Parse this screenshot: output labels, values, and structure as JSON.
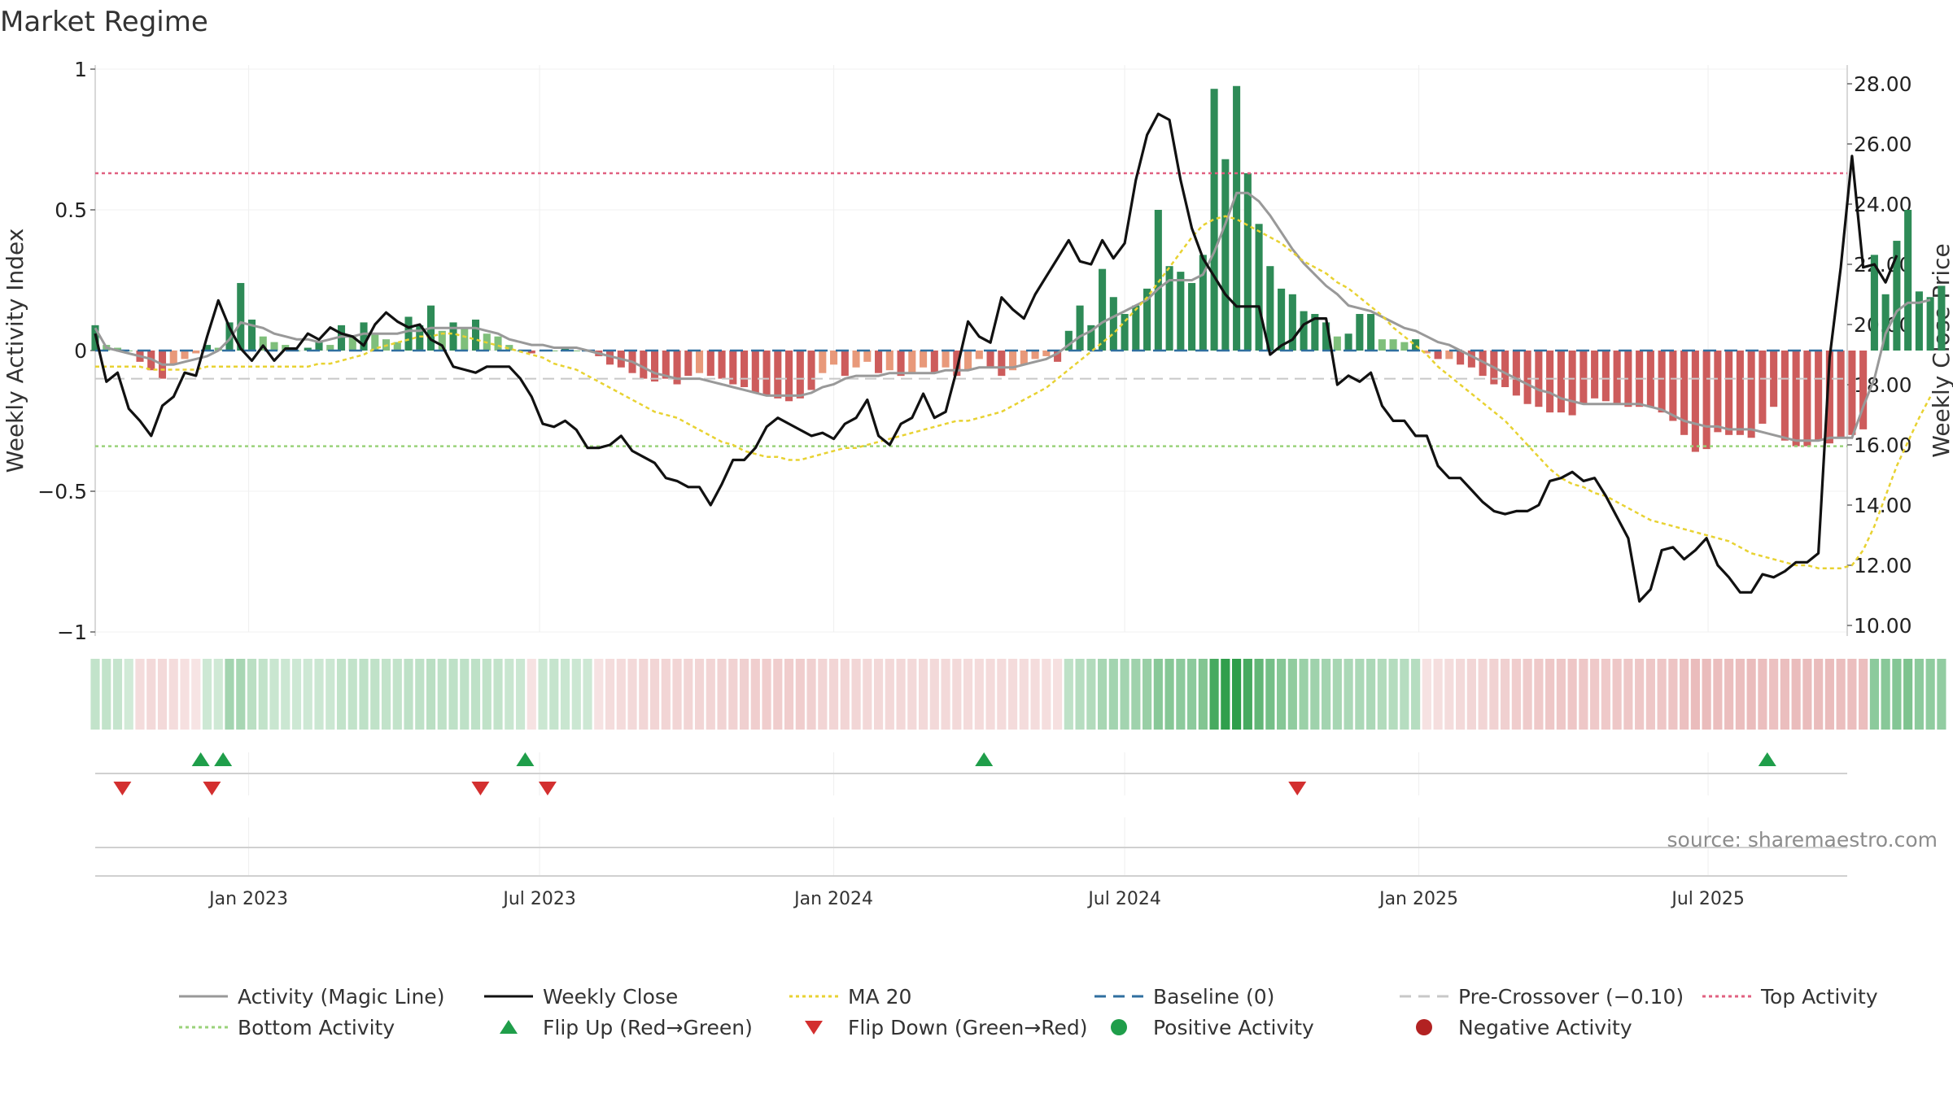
{
  "title": "Market Regime",
  "source": "source: sharemaestro.com",
  "left_axis": {
    "label": "Weekly Activity Index",
    "ticks": [
      1,
      0.5,
      0,
      -0.5,
      -1
    ],
    "tick_labels": [
      "1",
      "0.5",
      "0",
      "−0.5",
      "−1"
    ],
    "range": [
      -1,
      1
    ]
  },
  "right_axis": {
    "label": "Weekly Close Price",
    "ticks": [
      28,
      26,
      24,
      22,
      20,
      18,
      16,
      14,
      12,
      10
    ],
    "tick_labels": [
      "28.00",
      "26.00",
      "24.00",
      "22.00",
      "20.00",
      "18.00",
      "16.00",
      "14.00",
      "12.00",
      "10.00"
    ],
    "range": [
      9.9,
      28.4
    ]
  },
  "x_axis": {
    "ticks": [
      "2022-12-31",
      "2023-07-01",
      "2024-01-01",
      "2024-07-01",
      "2025-01-01",
      "2025-07-01"
    ],
    "tick_labels": [
      "Jan 2023",
      "Jul 2023",
      "Jan 2024",
      "Jul 2024",
      "Jan 2025",
      "Jul 2025"
    ],
    "range": [
      "2022-09-26",
      "2025-09-26"
    ]
  },
  "reference_lines": {
    "top_activity": 0.63,
    "baseline": 0,
    "pre_crossover": -0.1,
    "bottom_activity": -0.34
  },
  "legend": [
    {
      "label": "Activity (Magic Line)",
      "style": "line",
      "color": "#999999"
    },
    {
      "label": "Weekly Close",
      "style": "line",
      "color": "#111111"
    },
    {
      "label": "MA 20",
      "style": "dotted",
      "color": "#e8d232"
    },
    {
      "label": "Baseline (0)",
      "style": "dashed",
      "color": "#2f6f9f"
    },
    {
      "label": "Pre-Crossover (−0.10)",
      "style": "dashed",
      "color": "#c8c8c8"
    },
    {
      "label": "Top Activity",
      "style": "dotted",
      "color": "#e06080"
    },
    {
      "label": "Bottom Activity",
      "style": "dotted",
      "color": "#9ad27a"
    },
    {
      "label": "Flip Up (Red→Green)",
      "style": "triangle-up",
      "color": "#1f9e4a"
    },
    {
      "label": "Flip Down (Green→Red)",
      "style": "triangle-down",
      "color": "#d32f2f"
    },
    {
      "label": "Positive Activity",
      "style": "dot",
      "color": "#1f9e4a"
    },
    {
      "label": "Negative Activity",
      "style": "dot",
      "color": "#b22222"
    }
  ],
  "chart_data": {
    "type": "bar",
    "start_date": "2022-09-26",
    "interval_days": 7,
    "activity_index": [
      0.09,
      0.02,
      0.01,
      0,
      -0.04,
      -0.07,
      -0.1,
      -0.05,
      -0.03,
      -0.01,
      0.02,
      0.01,
      0.1,
      0.24,
      0.11,
      0.05,
      0.03,
      0.02,
      0,
      0.01,
      0.03,
      0.02,
      0.09,
      0.05,
      0.1,
      0.06,
      0.04,
      0.03,
      0.12,
      0.09,
      0.16,
      0.07,
      0.1,
      0.08,
      0.11,
      0.06,
      0.05,
      0.02,
      0,
      -0.01,
      0,
      0,
      0.01,
      0,
      0,
      -0.02,
      -0.05,
      -0.06,
      -0.08,
      -0.1,
      -0.11,
      -0.1,
      -0.12,
      -0.09,
      -0.08,
      -0.09,
      -0.1,
      -0.12,
      -0.13,
      -0.15,
      -0.16,
      -0.17,
      -0.18,
      -0.17,
      -0.14,
      -0.08,
      -0.05,
      -0.09,
      -0.06,
      -0.04,
      -0.08,
      -0.07,
      -0.09,
      -0.08,
      -0.06,
      -0.08,
      -0.06,
      -0.09,
      -0.07,
      -0.03,
      -0.06,
      -0.09,
      -0.07,
      -0.05,
      -0.03,
      -0.02,
      -0.04,
      0.07,
      0.16,
      0.09,
      0.29,
      0.19,
      0.13,
      0.16,
      0.22,
      0.5,
      0.3,
      0.28,
      0.24,
      0.34,
      0.93,
      0.68,
      0.94,
      0.63,
      0.45,
      0.3,
      0.22,
      0.2,
      0.14,
      0.13,
      0.1,
      0.05,
      0.06,
      0.13,
      0.13,
      0.04,
      0.04,
      0.03,
      0.04,
      -0.01,
      -0.03,
      -0.03,
      -0.05,
      -0.06,
      -0.09,
      -0.12,
      -0.13,
      -0.16,
      -0.19,
      -0.2,
      -0.22,
      -0.22,
      -0.23,
      -0.19,
      -0.17,
      -0.18,
      -0.19,
      -0.2,
      -0.2,
      -0.2,
      -0.22,
      -0.25,
      -0.3,
      -0.36,
      -0.35,
      -0.29,
      -0.3,
      -0.3,
      -0.31,
      -0.26,
      -0.2,
      -0.32,
      -0.34,
      -0.34,
      -0.32,
      -0.33,
      -0.31,
      -0.3,
      -0.28,
      0.34,
      0.2,
      0.39,
      0.5,
      0.21,
      0.19,
      0.23
    ],
    "weekly_close": [
      19.7,
      18.1,
      18.4,
      17.2,
      16.8,
      16.3,
      17.3,
      17.6,
      18.4,
      18.3,
      19.6,
      20.8,
      19.9,
      19.2,
      18.8,
      19.3,
      18.8,
      19.2,
      19.2,
      19.7,
      19.5,
      19.9,
      19.7,
      19.6,
      19.3,
      20.0,
      20.4,
      20.1,
      19.9,
      20.0,
      19.5,
      19.3,
      18.6,
      18.5,
      18.4,
      18.6,
      18.6,
      18.6,
      18.2,
      17.6,
      16.7,
      16.6,
      16.8,
      16.5,
      15.9,
      15.9,
      16.0,
      16.3,
      15.8,
      15.6,
      15.4,
      14.9,
      14.8,
      14.6,
      14.6,
      14.0,
      14.7,
      15.5,
      15.5,
      15.9,
      16.6,
      16.9,
      16.7,
      16.5,
      16.3,
      16.4,
      16.2,
      16.7,
      16.9,
      17.5,
      16.3,
      16.0,
      16.7,
      16.9,
      17.7,
      16.9,
      17.1,
      18.5,
      20.1,
      19.6,
      19.4,
      20.9,
      20.5,
      20.2,
      21.0,
      21.6,
      22.2,
      22.8,
      22.1,
      22.0,
      22.8,
      22.2,
      22.7,
      24.8,
      26.3,
      27.0,
      26.8,
      24.8,
      23.2,
      22.2,
      21.6,
      21.0,
      20.6,
      20.6,
      20.6,
      19.0,
      19.3,
      19.5,
      20.0,
      20.2,
      20.2,
      18.0,
      18.3,
      18.1,
      18.4,
      17.3,
      16.8,
      16.8,
      16.3,
      16.3,
      15.3,
      14.9,
      14.9,
      14.5,
      14.1,
      13.8,
      13.7,
      13.8,
      13.8,
      14.0,
      14.8,
      14.9,
      15.1,
      14.8,
      14.9,
      14.3,
      13.6,
      12.9,
      10.8,
      11.2,
      12.5,
      12.6,
      12.2,
      12.5,
      12.9,
      12.0,
      11.6,
      11.1,
      11.1,
      11.7,
      11.6,
      11.8,
      12.1,
      12.1,
      12.4,
      18.9,
      21.9,
      25.6,
      21.9,
      22.0,
      21.4,
      22.3
    ],
    "activity_magic_line": [
      0.08,
      0.01,
      0,
      -0.01,
      -0.02,
      -0.03,
      -0.05,
      -0.05,
      -0.04,
      -0.03,
      -0.02,
      0,
      0.04,
      0.1,
      0.09,
      0.08,
      0.06,
      0.05,
      0.04,
      0.04,
      0.03,
      0.04,
      0.05,
      0.05,
      0.06,
      0.06,
      0.06,
      0.06,
      0.07,
      0.07,
      0.08,
      0.08,
      0.08,
      0.08,
      0.08,
      0.07,
      0.06,
      0.04,
      0.03,
      0.02,
      0.02,
      0.01,
      0.01,
      0.01,
      0,
      -0.01,
      -0.02,
      -0.03,
      -0.04,
      -0.06,
      -0.08,
      -0.09,
      -0.1,
      -0.1,
      -0.1,
      -0.11,
      -0.12,
      -0.13,
      -0.14,
      -0.15,
      -0.16,
      -0.16,
      -0.16,
      -0.16,
      -0.15,
      -0.13,
      -0.12,
      -0.1,
      -0.09,
      -0.09,
      -0.09,
      -0.08,
      -0.08,
      -0.08,
      -0.08,
      -0.08,
      -0.07,
      -0.07,
      -0.07,
      -0.06,
      -0.06,
      -0.06,
      -0.06,
      -0.05,
      -0.04,
      -0.03,
      -0.01,
      0.02,
      0.05,
      0.07,
      0.1,
      0.12,
      0.14,
      0.16,
      0.18,
      0.22,
      0.25,
      0.25,
      0.25,
      0.27,
      0.35,
      0.45,
      0.56,
      0.56,
      0.53,
      0.48,
      0.42,
      0.36,
      0.31,
      0.27,
      0.23,
      0.2,
      0.16,
      0.15,
      0.14,
      0.12,
      0.1,
      0.08,
      0.07,
      0.05,
      0.03,
      0.02,
      0,
      -0.02,
      -0.04,
      -0.06,
      -0.08,
      -0.1,
      -0.12,
      -0.14,
      -0.15,
      -0.17,
      -0.18,
      -0.19,
      -0.19,
      -0.19,
      -0.19,
      -0.19,
      -0.19,
      -0.2,
      -0.21,
      -0.23,
      -0.25,
      -0.26,
      -0.27,
      -0.27,
      -0.28,
      -0.28,
      -0.28,
      -0.29,
      -0.3,
      -0.31,
      -0.32,
      -0.32,
      -0.32,
      -0.31,
      -0.31,
      -0.31,
      -0.2,
      -0.1,
      0.06,
      0.14,
      0.17,
      0.17,
      0.18
    ],
    "ma20": [
      18.6,
      18.6,
      18.6,
      18.6,
      18.6,
      18.5,
      18.5,
      18.5,
      18.5,
      18.5,
      18.6,
      18.6,
      18.6,
      18.6,
      18.6,
      18.6,
      18.6,
      18.6,
      18.6,
      18.6,
      18.7,
      18.7,
      18.8,
      18.9,
      19.0,
      19.2,
      19.3,
      19.4,
      19.5,
      19.6,
      19.6,
      19.7,
      19.7,
      19.6,
      19.5,
      19.4,
      19.3,
      19.2,
      19.1,
      19.0,
      18.9,
      18.7,
      18.6,
      18.5,
      18.3,
      18.1,
      17.9,
      17.7,
      17.5,
      17.3,
      17.1,
      17.0,
      16.9,
      16.7,
      16.5,
      16.3,
      16.1,
      16.0,
      15.8,
      15.7,
      15.6,
      15.6,
      15.5,
      15.5,
      15.6,
      15.7,
      15.8,
      15.9,
      15.9,
      16.0,
      16.1,
      16.2,
      16.3,
      16.4,
      16.5,
      16.6,
      16.7,
      16.8,
      16.8,
      16.9,
      17.0,
      17.1,
      17.3,
      17.5,
      17.7,
      17.9,
      18.2,
      18.5,
      18.8,
      19.1,
      19.4,
      19.7,
      20.1,
      20.5,
      20.9,
      21.4,
      21.9,
      22.4,
      22.9,
      23.3,
      23.5,
      23.6,
      23.5,
      23.3,
      23.1,
      22.9,
      22.7,
      22.4,
      22.1,
      21.9,
      21.7,
      21.4,
      21.2,
      20.9,
      20.6,
      20.3,
      19.9,
      19.6,
      19.3,
      19.0,
      18.6,
      18.3,
      18.0,
      17.7,
      17.4,
      17.1,
      16.8,
      16.4,
      16.0,
      15.6,
      15.2,
      14.9,
      14.7,
      14.6,
      14.4,
      14.3,
      14.1,
      13.9,
      13.7,
      13.5,
      13.4,
      13.3,
      13.2,
      13.1,
      13.0,
      12.9,
      12.8,
      12.6,
      12.4,
      12.3,
      12.2,
      12.1,
      12.0,
      12.0,
      11.9,
      11.9,
      11.9,
      12.0,
      12.5,
      13.3,
      14.3,
      15.3,
      16.1,
      16.9,
      17.6
    ],
    "regime_strip": [
      0.06,
      0.06,
      0.05,
      0,
      -0.05,
      -0.08,
      -0.08,
      -0.06,
      -0.03,
      -0.01,
      0.02,
      0.01,
      0.2,
      0.18,
      0.1,
      0.06,
      0.04,
      0.03,
      0.02,
      0.02,
      0.03,
      0.03,
      0.06,
      0.06,
      0.08,
      0.07,
      0.06,
      0.06,
      0.08,
      0.08,
      0.1,
      0.08,
      0.08,
      0.08,
      0.08,
      0.07,
      0.06,
      0.04,
      0.03,
      -0.02,
      0.03,
      0.05,
      0.04,
      0.03,
      0.02,
      -0.02,
      -0.05,
      -0.07,
      -0.08,
      -0.1,
      -0.11,
      -0.11,
      -0.12,
      -0.12,
      -0.12,
      -0.12,
      -0.13,
      -0.14,
      -0.15,
      -0.16,
      -0.17,
      -0.18,
      -0.18,
      -0.17,
      -0.15,
      -0.12,
      -0.11,
      -0.11,
      -0.1,
      -0.09,
      -0.09,
      -0.09,
      -0.09,
      -0.08,
      -0.08,
      -0.08,
      -0.08,
      -0.08,
      -0.07,
      -0.07,
      -0.07,
      -0.07,
      -0.07,
      -0.06,
      -0.05,
      -0.04,
      -0.03,
      0.08,
      0.12,
      0.14,
      0.18,
      0.2,
      0.2,
      0.22,
      0.25,
      0.32,
      0.33,
      0.3,
      0.3,
      0.35,
      0.6,
      0.7,
      0.75,
      0.6,
      0.48,
      0.4,
      0.33,
      0.28,
      0.24,
      0.22,
      0.2,
      0.18,
      0.16,
      0.16,
      0.16,
      0.14,
      0.13,
      0.12,
      0.12,
      -0.02,
      -0.04,
      -0.06,
      -0.08,
      -0.1,
      -0.12,
      -0.14,
      -0.15,
      -0.17,
      -0.19,
      -0.2,
      -0.21,
      -0.21,
      -0.22,
      -0.21,
      -0.2,
      -0.2,
      -0.21,
      -0.21,
      -0.21,
      -0.21,
      -0.22,
      -0.24,
      -0.27,
      -0.3,
      -0.3,
      -0.29,
      -0.29,
      -0.29,
      -0.3,
      -0.28,
      -0.26,
      -0.29,
      -0.3,
      -0.3,
      -0.3,
      -0.3,
      -0.29,
      -0.29,
      -0.28,
      0.3,
      0.32,
      0.34,
      0.36,
      0.3,
      0.28,
      0.27
    ],
    "flip_up": [
      "2022-12-01",
      "2022-12-15",
      "2023-06-22",
      "2024-04-04",
      "2025-08-07"
    ],
    "flip_down": [
      "2022-10-13",
      "2022-12-08",
      "2023-05-25",
      "2023-07-06",
      "2024-10-17"
    ]
  }
}
